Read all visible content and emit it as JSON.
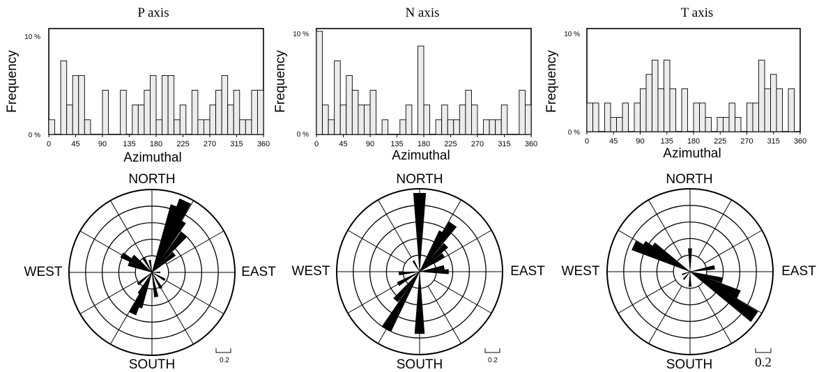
{
  "panels": [
    {
      "title": "P axis",
      "histogram": {
        "ylabel": "Frequency",
        "xlabel": "Azimuthal",
        "ytick_labels": [
          "0 %",
          "10 %"
        ],
        "xtick_labels": [
          "0",
          "45",
          "90",
          "135",
          "180",
          "225",
          "270",
          "315",
          "360"
        ]
      },
      "rose": {
        "north": "NORTH",
        "south": "SOUTH",
        "east": "EAST",
        "west": "WEST",
        "scale_label": "0.2"
      }
    },
    {
      "title": "N axis",
      "histogram": {
        "ylabel": "Frequency",
        "xlabel": "Azimuthal",
        "ytick_labels": [
          "0 %",
          "10 %"
        ],
        "xtick_labels": [
          "0",
          "45",
          "90",
          "135",
          "180",
          "225",
          "270",
          "315",
          "360"
        ]
      },
      "rose": {
        "north": "NORTH",
        "south": "SOUTH",
        "east": "EAST",
        "west": "WEST",
        "scale_label": "0.2"
      }
    },
    {
      "title": "T axis",
      "histogram": {
        "ylabel": "Frequency",
        "xlabel": "Azimuthal",
        "ytick_labels": [
          "0 %",
          "10 %"
        ],
        "xtick_labels": [
          "0",
          "45",
          "90",
          "135",
          "180",
          "225",
          "270",
          "315",
          "360"
        ]
      },
      "rose": {
        "north": "NORTH",
        "south": "SOUTH",
        "east": "EAST",
        "west": "WEST",
        "scale_label": "0.2"
      }
    }
  ],
  "chart_data": [
    {
      "type": "bar",
      "title": "P axis",
      "xlabel": "Azimuthal",
      "ylabel": "Frequency",
      "xlim": [
        0,
        360
      ],
      "ylim": [
        0,
        10
      ],
      "bin_width": 10,
      "bin_start": [
        0,
        10,
        20,
        30,
        40,
        50,
        60,
        70,
        80,
        90,
        100,
        110,
        120,
        130,
        140,
        150,
        160,
        170,
        180,
        190,
        200,
        210,
        220,
        230,
        240,
        250,
        260,
        270,
        280,
        290,
        300,
        310,
        320,
        330,
        340,
        350
      ],
      "values": [
        1.5,
        0,
        7.5,
        3,
        6,
        6,
        1.5,
        0,
        0,
        4.5,
        0,
        0,
        4.5,
        0,
        3,
        3,
        4.5,
        6,
        1.5,
        6,
        6,
        1.5,
        3,
        0,
        4.5,
        1.5,
        1.5,
        3,
        4.5,
        6,
        3,
        4.5,
        1.5,
        1.5,
        4.5,
        4.5
      ]
    },
    {
      "type": "bar",
      "title": "N axis",
      "xlabel": "Azimuthal",
      "ylabel": "Frequency",
      "xlim": [
        0,
        360
      ],
      "ylim": [
        0,
        10
      ],
      "bin_width": 10,
      "bin_start": [
        0,
        10,
        20,
        30,
        40,
        50,
        60,
        70,
        80,
        90,
        100,
        110,
        120,
        130,
        140,
        150,
        160,
        170,
        180,
        190,
        200,
        210,
        220,
        230,
        240,
        250,
        260,
        270,
        280,
        290,
        300,
        310,
        320,
        330,
        340,
        350
      ],
      "values": [
        10.5,
        3,
        1.5,
        7.5,
        3,
        6,
        4.5,
        3,
        3,
        4.5,
        0,
        1.5,
        0,
        0,
        1.5,
        3,
        0,
        9,
        3,
        0,
        1.5,
        3,
        1.5,
        1.5,
        3,
        4.5,
        3,
        0,
        1.5,
        1.5,
        1.5,
        3,
        0,
        0,
        4.5,
        3
      ]
    },
    {
      "type": "bar",
      "title": "T axis",
      "xlabel": "Azimuthal",
      "ylabel": "Frequency",
      "xlim": [
        0,
        360
      ],
      "ylim": [
        0,
        10
      ],
      "bin_width": 10,
      "bin_start": [
        0,
        10,
        20,
        30,
        40,
        50,
        60,
        70,
        80,
        90,
        100,
        110,
        120,
        130,
        140,
        150,
        160,
        170,
        180,
        190,
        200,
        210,
        220,
        230,
        240,
        250,
        260,
        270,
        280,
        290,
        300,
        310,
        320,
        330,
        340,
        350
      ],
      "values": [
        3,
        3,
        0,
        3,
        1.5,
        1.5,
        3,
        0,
        3,
        4.5,
        6,
        7.5,
        4.5,
        7.5,
        4.5,
        0,
        4.5,
        0,
        3,
        3,
        1.5,
        0,
        1.5,
        1.5,
        3,
        1.5,
        0,
        3,
        3,
        7.5,
        4.5,
        6,
        4.5,
        0,
        4.5,
        0
      ]
    },
    {
      "type": "rose",
      "title": "P axis",
      "axis_type": "direction",
      "max_radius": 1.0,
      "ring_step": 0.2,
      "spoke_step_deg": 30,
      "petals": [
        {
          "azimuth": 20,
          "value": 0.85
        },
        {
          "azimuth": 25,
          "value": 0.95
        },
        {
          "azimuth": 30,
          "value": 0.72
        },
        {
          "azimuth": 40,
          "value": 0.6
        },
        {
          "azimuth": 50,
          "value": 0.35
        },
        {
          "azimuth": 90,
          "value": 0.1
        },
        {
          "azimuth": 120,
          "value": 0.18
        },
        {
          "azimuth": 150,
          "value": 0.22
        },
        {
          "azimuth": 170,
          "value": 0.3
        },
        {
          "azimuth": 200,
          "value": 0.45
        },
        {
          "azimuth": 205,
          "value": 0.55
        },
        {
          "azimuth": 210,
          "value": 0.3
        },
        {
          "azimuth": 230,
          "value": 0.22
        },
        {
          "azimuth": 290,
          "value": 0.3
        },
        {
          "azimuth": 300,
          "value": 0.42
        },
        {
          "azimuth": 310,
          "value": 0.3
        },
        {
          "azimuth": 330,
          "value": 0.2
        },
        {
          "azimuth": 350,
          "value": 0.15
        }
      ]
    },
    {
      "type": "rose",
      "title": "N axis",
      "axis_type": "direction",
      "max_radius": 1.0,
      "ring_step": 0.2,
      "spoke_step_deg": 30,
      "petals": [
        {
          "azimuth": 0,
          "value": 0.95
        },
        {
          "azimuth": 30,
          "value": 0.55
        },
        {
          "azimuth": 35,
          "value": 0.7
        },
        {
          "azimuth": 45,
          "value": 0.45
        },
        {
          "azimuth": 55,
          "value": 0.35
        },
        {
          "azimuth": 80,
          "value": 0.3
        },
        {
          "azimuth": 90,
          "value": 0.35
        },
        {
          "azimuth": 180,
          "value": 0.75
        },
        {
          "azimuth": 210,
          "value": 0.8
        },
        {
          "azimuth": 220,
          "value": 0.45
        },
        {
          "azimuth": 240,
          "value": 0.3
        },
        {
          "azimuth": 265,
          "value": 0.25
        },
        {
          "azimuth": 330,
          "value": 0.15
        }
      ]
    },
    {
      "type": "rose",
      "title": "T axis",
      "axis_type": "direction",
      "max_radius": 1.0,
      "ring_step": 0.2,
      "spoke_step_deg": 30,
      "petals": [
        {
          "azimuth": 295,
          "value": 0.75
        },
        {
          "azimuth": 300,
          "value": 0.65
        },
        {
          "azimuth": 305,
          "value": 0.55
        },
        {
          "azimuth": 115,
          "value": 0.65
        },
        {
          "azimuth": 125,
          "value": 0.95
        },
        {
          "azimuth": 105,
          "value": 0.4
        },
        {
          "azimuth": 80,
          "value": 0.3
        },
        {
          "azimuth": 0,
          "value": 0.28
        },
        {
          "azimuth": 180,
          "value": 0.18
        },
        {
          "azimuth": 220,
          "value": 0.12
        },
        {
          "azimuth": 250,
          "value": 0.1
        }
      ]
    }
  ]
}
